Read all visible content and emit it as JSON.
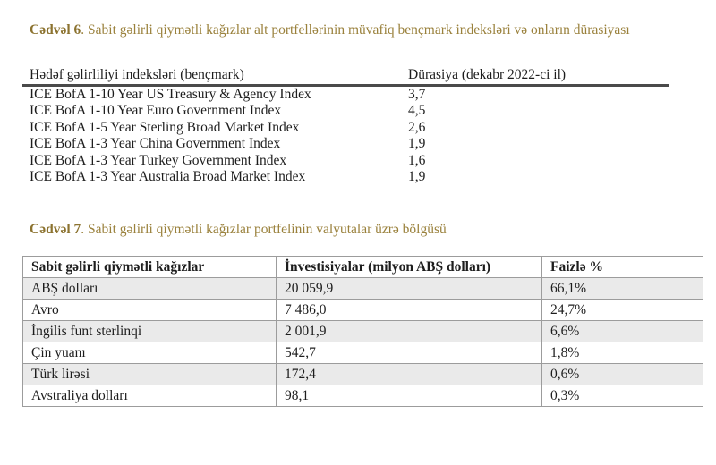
{
  "colors": {
    "caption_gold": "#8C7330",
    "caption_gold_light": "#9A813C",
    "header_rule": "#4A4A4A",
    "grid_border": "#9C9C9C",
    "row_shading": "#EAEAEA",
    "body_text": "#1D1D1D"
  },
  "table6": {
    "caption_label": "Cədvəl 6",
    "caption_text": ". Sabit gəlirli qiymətli kağızlar alt portfellərinin müvafiq bençmark indeksləri və onların dürasiyası",
    "columns": [
      "Hədəf gəlirliliyi indeksləri (bençmark)",
      "Dürasiya (dekabr 2022-ci il)"
    ],
    "rows": [
      {
        "benchmark": "ICE BofA 1-10 Year US Treasury & Agency Index",
        "duration": "3,7"
      },
      {
        "benchmark": "ICE BofA 1-10 Year Euro Government Index",
        "duration": "4,5"
      },
      {
        "benchmark": "ICE BofA 1-5 Year Sterling Broad Market Index",
        "duration": "2,6"
      },
      {
        "benchmark": "ICE BofA 1-3 Year China Government Index",
        "duration": "1,9"
      },
      {
        "benchmark": "ICE BofA 1-3 Year Turkey Government Index",
        "duration": "1,6"
      },
      {
        "benchmark": "ICE BofA 1-3 Year Australia Broad Market Index",
        "duration": "1,9"
      }
    ]
  },
  "table7": {
    "caption_label": "Cədvəl 7",
    "caption_text": ". Sabit gəlirli qiymətli kağızlar portfelinin valyutalar üzrə bölgüsü",
    "columns": [
      "Sabit gəlirli qiymətli kağızlar",
      "İnvestisiyalar (milyon ABŞ dolları)",
      "Faizlə %"
    ],
    "rows": [
      {
        "currency": "ABŞ dolları",
        "investment": "20 059,9",
        "percent": "66,1%"
      },
      {
        "currency": "Avro",
        "investment": "7 486,0",
        "percent": "24,7%"
      },
      {
        "currency": "İngilis funt sterlinqi",
        "investment": "2 001,9",
        "percent": "6,6%"
      },
      {
        "currency": "Çin yuanı",
        "investment": "542,7",
        "percent": "1,8%"
      },
      {
        "currency": "Türk lirəsi",
        "investment": "172,4",
        "percent": "0,6%"
      },
      {
        "currency": "Avstraliya dolları",
        "investment": "98,1",
        "percent": "0,3%"
      }
    ]
  }
}
